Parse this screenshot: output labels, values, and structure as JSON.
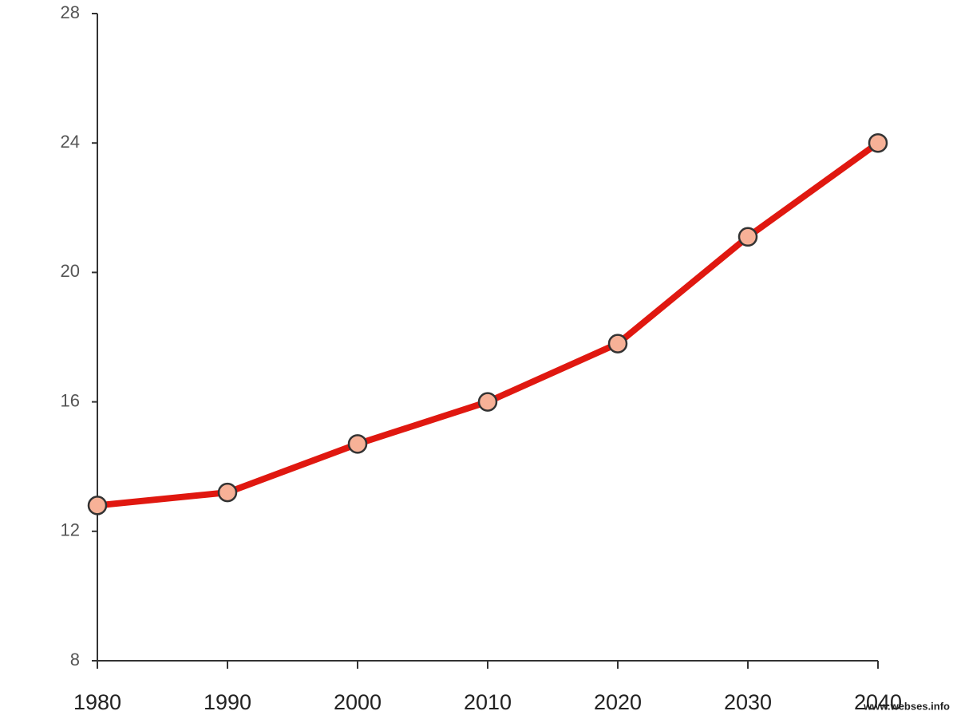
{
  "chart_data": {
    "type": "line",
    "x": [
      1980,
      1990,
      2000,
      2010,
      2020,
      2030,
      2040
    ],
    "series": [
      {
        "color": "#e01810",
        "marker_color": "#f7b197",
        "values": [
          12.8,
          13.2,
          14.7,
          16.0,
          17.8,
          21.1,
          24.0
        ]
      }
    ],
    "xlim": [
      1980,
      2040
    ],
    "xticks": [
      1980,
      1990,
      2000,
      2010,
      2020,
      2030,
      2040
    ],
    "ylim": [
      8,
      28
    ],
    "yticks": [
      8,
      12,
      16,
      20,
      24,
      28
    ],
    "grid": false,
    "watermark": "www.webses.info"
  }
}
